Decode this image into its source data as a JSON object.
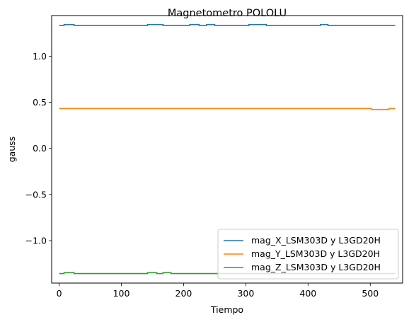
{
  "chart_data": {
    "type": "line",
    "title": "Magnetometro POLOLU",
    "xlabel": "Tiempo",
    "ylabel": "gauss",
    "xlim": [
      -12,
      552
    ],
    "ylim": [
      -1.46,
      1.44
    ],
    "xticks": [
      0,
      100,
      200,
      300,
      400,
      500
    ],
    "yticks": [
      -1.0,
      -0.5,
      0.0,
      0.5,
      1.0
    ],
    "ytick_labels": [
      "−1.0",
      "−0.5",
      "0.0",
      "0.5",
      "1.0"
    ],
    "grid": false,
    "legend_position": "lower right",
    "series": [
      {
        "name": "mag_X_LSM303D y L3GD20H",
        "color": "#1f77b4",
        "x": [
          0,
          8,
          8,
          24,
          24,
          142,
          142,
          167,
          167,
          210,
          210,
          225,
          225,
          237,
          237,
          250,
          250,
          305,
          305,
          333,
          333,
          420,
          420,
          432,
          432,
          528,
          528,
          540
        ],
        "y": [
          1.333,
          1.333,
          1.343,
          1.343,
          1.333,
          1.333,
          1.343,
          1.343,
          1.333,
          1.333,
          1.343,
          1.343,
          1.333,
          1.333,
          1.343,
          1.343,
          1.333,
          1.333,
          1.343,
          1.343,
          1.333,
          1.333,
          1.343,
          1.343,
          1.333,
          1.333,
          1.333,
          1.333
        ]
      },
      {
        "name": "mag_Y_LSM303D y L3GD20H",
        "color": "#ff7f0e",
        "x": [
          0,
          502,
          502,
          530,
          530,
          540
        ],
        "y": [
          0.432,
          0.432,
          0.422,
          0.422,
          0.432,
          0.432
        ]
      },
      {
        "name": "mag_Z_LSM303D y L3GD20H",
        "color": "#2ca02c",
        "x": [
          0,
          8,
          8,
          24,
          24,
          142,
          142,
          157,
          157,
          167,
          167,
          180,
          180,
          540
        ],
        "y": [
          -1.357,
          -1.357,
          -1.347,
          -1.347,
          -1.357,
          -1.357,
          -1.347,
          -1.347,
          -1.357,
          -1.357,
          -1.347,
          -1.347,
          -1.357,
          -1.357
        ]
      }
    ]
  }
}
